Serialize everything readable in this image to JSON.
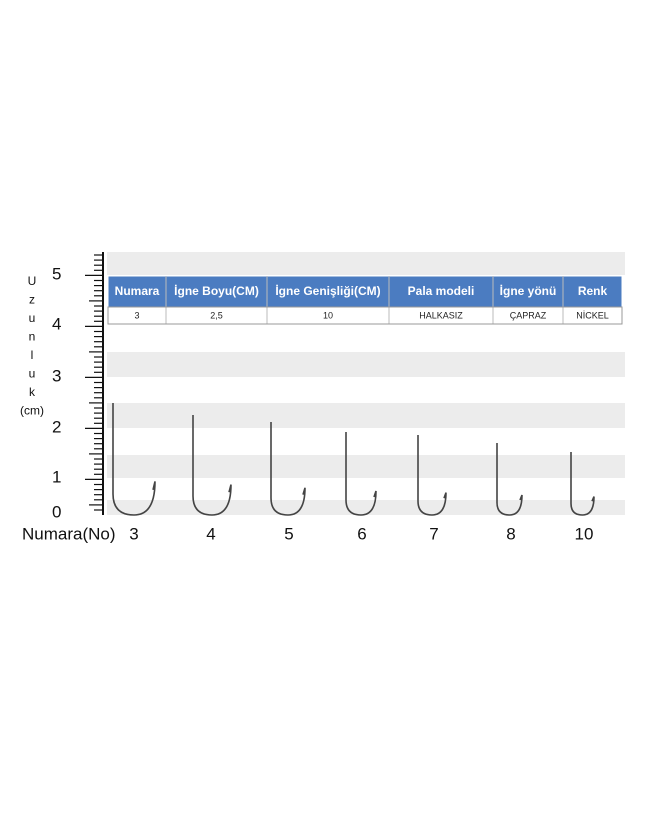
{
  "vertical_label": [
    "U",
    "z",
    "u",
    "n",
    "l",
    "u",
    "k",
    "(cm)"
  ],
  "scale_labels": [
    "5",
    "4",
    "3",
    "2",
    "1",
    "0"
  ],
  "table": {
    "header": [
      "Numara",
      "İgne Boyu(CM)",
      "İgne Genişliği(CM)",
      "Pala modeli",
      "İgne yönü",
      "Renk"
    ],
    "rows": [
      [
        "3",
        "2,5",
        "10",
        "HALKASIZ",
        "ÇAPRAZ",
        "NİCKEL"
      ]
    ]
  },
  "hooks": {
    "label": "Numara(No)",
    "numbers": [
      "3",
      "4",
      "5",
      "6",
      "7",
      "8",
      "10"
    ]
  }
}
